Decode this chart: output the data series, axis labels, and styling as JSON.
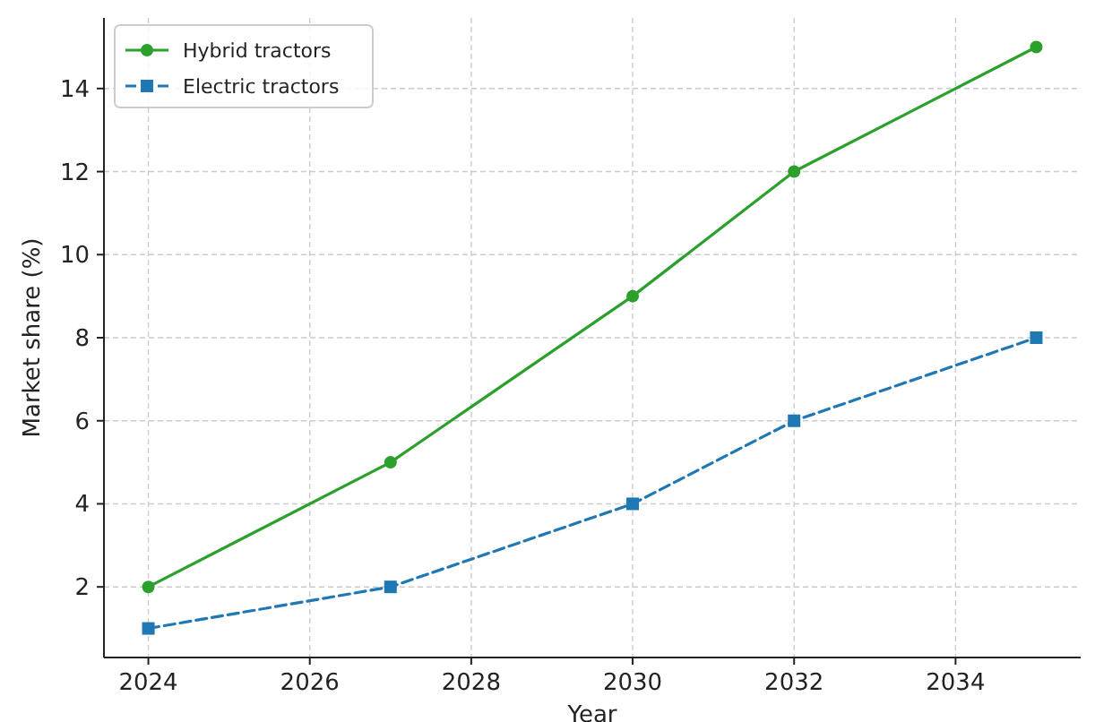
{
  "chart_data": {
    "type": "line",
    "xlabel": "Year",
    "ylabel": "Market share (%)",
    "x": [
      2024,
      2027,
      2030,
      2032,
      2035
    ],
    "series": [
      {
        "name": "Hybrid tractors",
        "color": "#2ca02c",
        "values": [
          2,
          5,
          9,
          12,
          15
        ],
        "marker": "circle",
        "line_style": "solid"
      },
      {
        "name": "Electric tractors",
        "color": "#1f77b4",
        "values": [
          1,
          2,
          4,
          6,
          8
        ],
        "marker": "square",
        "line_style": "dashed"
      }
    ],
    "xlim": [
      2023.45,
      2035.55
    ],
    "xticks": [
      2024,
      2026,
      2028,
      2030,
      2032,
      2034
    ],
    "ylim": [
      0.3,
      15.7
    ],
    "yticks": [
      2,
      4,
      6,
      8,
      10,
      12,
      14
    ],
    "grid": true,
    "legend": "top left"
  }
}
